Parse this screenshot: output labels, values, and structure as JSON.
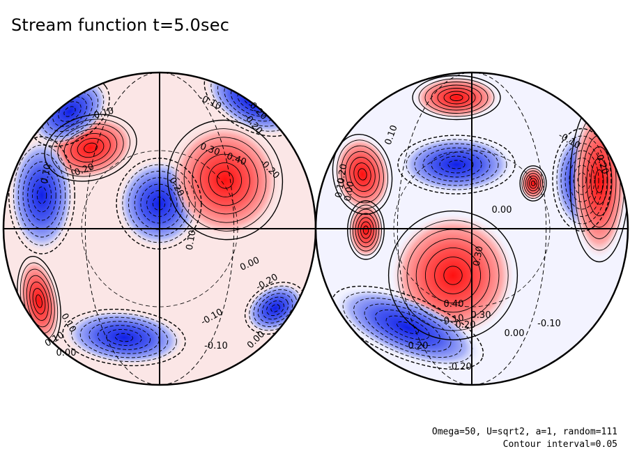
{
  "figure": {
    "title": "Stream function t=5.0sec",
    "params_text": "Omega=50, U=sqrt2, a=1, random=111",
    "interval_text": "Contour interval=0.05",
    "colors": {
      "positive": "#ff2020",
      "negative": "#2030e0",
      "contour": "#000000",
      "background": "#ffffff"
    },
    "left_hemisphere": {
      "labels": [
        "0.10",
        "-0.10",
        "-0.20",
        "0.10",
        "0.20",
        "0.30",
        "0.40",
        "0.20",
        "-0.20",
        "0.10",
        "0.00",
        "-0.20",
        "0.10",
        "-0.10",
        "-0.10",
        "0.00",
        "0.10",
        "-0.20",
        "0.00"
      ]
    },
    "right_hemisphere": {
      "labels": [
        "0.10",
        "-0.10",
        "-0.20",
        "0.00",
        "0.10",
        "0.20",
        "0.00",
        "0.40",
        "0.10",
        "0.20",
        "0.30",
        "0.00",
        "-0.10",
        "0.30",
        "0.20",
        "-0.20"
      ]
    }
  }
}
